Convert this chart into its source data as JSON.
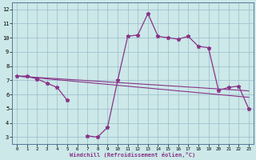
{
  "xlabel": "Windchill (Refroidissement éolien,°C)",
  "x_values": [
    0,
    1,
    2,
    3,
    4,
    5,
    6,
    7,
    8,
    9,
    10,
    11,
    12,
    13,
    14,
    15,
    16,
    17,
    18,
    19,
    20,
    21,
    22,
    23
  ],
  "y_main": [
    7.3,
    7.3,
    7.1,
    6.8,
    6.5,
    5.6,
    null,
    3.1,
    3.0,
    3.7,
    7.0,
    10.1,
    10.2,
    11.7,
    10.1,
    10.0,
    9.9,
    10.1,
    9.4,
    9.3,
    6.3,
    6.5,
    6.6,
    5.0
  ],
  "y_line1": [
    7.3,
    7.24,
    7.17,
    7.11,
    7.04,
    6.98,
    6.91,
    6.85,
    6.78,
    6.72,
    6.65,
    6.59,
    6.52,
    6.46,
    6.39,
    6.33,
    6.26,
    6.2,
    6.13,
    6.07,
    6.0,
    5.94,
    5.87,
    5.81
  ],
  "y_line2": [
    7.3,
    7.25,
    7.21,
    7.16,
    7.12,
    7.07,
    7.03,
    6.98,
    6.94,
    6.89,
    6.85,
    6.8,
    6.76,
    6.71,
    6.67,
    6.62,
    6.58,
    6.53,
    6.49,
    6.44,
    6.4,
    6.35,
    6.31,
    6.26
  ],
  "bg_color": "#cce8e8",
  "grid_color": "#99bbcc",
  "line_color": "#883388",
  "ylim": [
    2.5,
    12.5
  ],
  "xlim": [
    -0.5,
    23.5
  ],
  "yticks": [
    3,
    4,
    5,
    6,
    7,
    8,
    9,
    10,
    11,
    12
  ],
  "xticks": [
    0,
    1,
    2,
    3,
    4,
    5,
    6,
    7,
    8,
    9,
    10,
    11,
    12,
    13,
    14,
    15,
    16,
    17,
    18,
    19,
    20,
    21,
    22,
    23
  ]
}
